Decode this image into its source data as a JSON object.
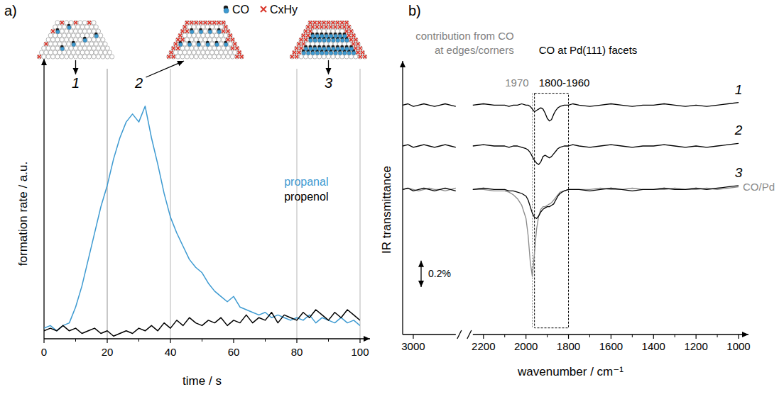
{
  "chart_data": [
    {
      "type": "line",
      "panel": "a)",
      "xlabel": "time / s",
      "ylabel": "formation rate / a.u.",
      "x": [
        0,
        2,
        4,
        6,
        8,
        10,
        12,
        14,
        16,
        18,
        20,
        22,
        24,
        26,
        28,
        30,
        32,
        34,
        36,
        38,
        40,
        42,
        44,
        46,
        48,
        50,
        52,
        54,
        56,
        58,
        60,
        62,
        64,
        66,
        68,
        70,
        72,
        74,
        76,
        78,
        80,
        82,
        84,
        86,
        88,
        90,
        92,
        94,
        96,
        98,
        100
      ],
      "xlim": [
        0,
        100
      ],
      "xticks": [
        0,
        20,
        40,
        60,
        80,
        100
      ],
      "ylim": [
        0,
        1
      ],
      "tick_labels": "x",
      "legend": "right",
      "series": [
        {
          "name": "propanal",
          "color": "#3d9ad1",
          "values": [
            0.04,
            0.05,
            0.03,
            0.05,
            0.06,
            0.12,
            0.2,
            0.3,
            0.4,
            0.5,
            0.58,
            0.68,
            0.76,
            0.82,
            0.85,
            0.82,
            0.88,
            0.76,
            0.66,
            0.55,
            0.46,
            0.4,
            0.35,
            0.3,
            0.27,
            0.25,
            0.21,
            0.18,
            0.16,
            0.14,
            0.16,
            0.12,
            0.11,
            0.1,
            0.09,
            0.1,
            0.08,
            0.09,
            0.08,
            0.07,
            0.08,
            0.07,
            0.09,
            0.06,
            0.08,
            0.07,
            0.06,
            0.08,
            0.06,
            0.07,
            0.05
          ]
        },
        {
          "name": "propenol",
          "color": "#000000",
          "values": [
            0.03,
            0.04,
            0.03,
            0.05,
            0.03,
            0.04,
            0.02,
            0.03,
            0.04,
            0.02,
            0.03,
            0.01,
            0.02,
            0.03,
            0.02,
            0.04,
            0.03,
            0.05,
            0.03,
            0.06,
            0.04,
            0.07,
            0.05,
            0.08,
            0.06,
            0.05,
            0.07,
            0.06,
            0.08,
            0.05,
            0.07,
            0.06,
            0.09,
            0.06,
            0.08,
            0.07,
            0.1,
            0.06,
            0.09,
            0.08,
            0.07,
            0.1,
            0.08,
            0.11,
            0.09,
            0.07,
            0.1,
            0.08,
            0.11,
            0.09,
            0.07
          ]
        }
      ],
      "regions": [
        {
          "label": "1",
          "xlim": [
            0,
            20
          ]
        },
        {
          "label": "2",
          "xlim": [
            20,
            40
          ]
        },
        {
          "label": "3",
          "xlim": [
            80,
            100
          ]
        }
      ],
      "annotations": [
        {
          "text": "CO"
        },
        {
          "text": "CxHy"
        }
      ]
    },
    {
      "type": "line",
      "panel": "b)",
      "xlabel": "wavenumber / cm⁻¹",
      "ylabel": "IR transmittance",
      "x": [
        3050,
        3025,
        3000,
        2975,
        2950,
        2925,
        2900,
        2875,
        2850,
        2825,
        2800,
        2500,
        2250,
        2200,
        2150,
        2100,
        2080,
        2060,
        2040,
        2020,
        2000,
        1990,
        1980,
        1970,
        1960,
        1950,
        1940,
        1930,
        1920,
        1910,
        1900,
        1890,
        1880,
        1870,
        1860,
        1850,
        1840,
        1820,
        1800,
        1780,
        1750,
        1700,
        1650,
        1600,
        1550,
        1500,
        1450,
        1400,
        1350,
        1300,
        1250,
        1200,
        1150,
        1100,
        1050,
        1000
      ],
      "xlim": [
        3050,
        1000
      ],
      "x_break": [
        2800,
        2250
      ],
      "xticks": [
        3000,
        2200,
        2000,
        1800,
        1600,
        1400,
        1200,
        1000
      ],
      "ylim": [
        0,
        2
      ],
      "tick_labels": "x",
      "series": [
        {
          "name": "1",
          "color": "#000000",
          "values": [
            1.74,
            1.75,
            1.73,
            1.74,
            1.75,
            1.74,
            1.73,
            1.74,
            1.75,
            1.74,
            1.73,
            null,
            1.74,
            1.75,
            1.74,
            1.74,
            1.73,
            1.74,
            1.74,
            1.75,
            1.74,
            1.74,
            1.73,
            1.71,
            1.69,
            1.7,
            1.71,
            1.72,
            1.71,
            1.68,
            1.64,
            1.62,
            1.63,
            1.67,
            1.7,
            1.72,
            1.73,
            1.74,
            1.74,
            1.75,
            1.74,
            1.73,
            1.74,
            1.75,
            1.74,
            1.73,
            1.74,
            1.74,
            1.75,
            1.74,
            1.73,
            1.74,
            1.73,
            1.74,
            1.75,
            1.76
          ]
        },
        {
          "name": "2",
          "color": "#000000",
          "values": [
            1.43,
            1.44,
            1.42,
            1.43,
            1.44,
            1.43,
            1.42,
            1.43,
            1.44,
            1.43,
            1.42,
            null,
            1.43,
            1.44,
            1.43,
            1.43,
            1.42,
            1.43,
            1.43,
            1.42,
            1.41,
            1.4,
            1.38,
            1.35,
            1.32,
            1.3,
            1.29,
            1.31,
            1.35,
            1.36,
            1.35,
            1.34,
            1.35,
            1.37,
            1.39,
            1.41,
            1.42,
            1.43,
            1.43,
            1.44,
            1.43,
            1.42,
            1.43,
            1.44,
            1.43,
            1.42,
            1.43,
            1.43,
            1.44,
            1.43,
            1.42,
            1.43,
            1.42,
            1.43,
            1.44,
            1.45
          ]
        },
        {
          "name": "3",
          "color": "#000000",
          "values": [
            1.1,
            1.11,
            1.09,
            1.1,
            1.11,
            1.1,
            1.09,
            1.1,
            1.11,
            1.1,
            1.09,
            null,
            1.1,
            1.11,
            1.1,
            1.1,
            1.09,
            1.09,
            1.08,
            1.07,
            1.05,
            1.02,
            0.97,
            0.92,
            0.89,
            0.88,
            0.9,
            0.93,
            0.95,
            0.96,
            0.97,
            0.97,
            0.98,
            0.99,
            1.02,
            1.05,
            1.07,
            1.09,
            1.1,
            1.1,
            1.1,
            1.09,
            1.1,
            1.11,
            1.1,
            1.09,
            1.1,
            1.1,
            1.11,
            1.1,
            1.1,
            1.11,
            1.1,
            1.11,
            1.12,
            1.13
          ]
        },
        {
          "name": "CO/Pd",
          "color": "#8a8a8a",
          "values": [
            1.1,
            1.11,
            1.1,
            1.09,
            1.1,
            1.11,
            1.1,
            1.1,
            1.09,
            1.1,
            1.11,
            null,
            1.1,
            1.1,
            1.09,
            1.09,
            1.08,
            1.06,
            1.03,
            0.98,
            0.88,
            0.75,
            0.55,
            0.44,
            0.62,
            0.8,
            0.9,
            0.95,
            0.97,
            0.97,
            0.98,
            0.99,
            1.0,
            1.02,
            1.04,
            1.06,
            1.08,
            1.09,
            1.1,
            1.1,
            1.1,
            1.1,
            1.11,
            1.1,
            1.1,
            1.11,
            1.1,
            1.1,
            1.1,
            1.11,
            1.1,
            1.1,
            1.11,
            1.1,
            1.11,
            1.12
          ]
        }
      ],
      "annotations": [
        {
          "text": "contribution from CO at edges/corners",
          "color": "#7f7f7f"
        },
        {
          "text": "1970",
          "x": 1970,
          "yrange": [
            0.05,
            1.83
          ],
          "color": "#7f7f7f"
        },
        {
          "text": "CO at Pd(111) facets",
          "color": "#000000"
        },
        {
          "text": "1800-1960",
          "xrange": [
            1800,
            1960
          ],
          "yrange": [
            0.05,
            1.83
          ],
          "color": "#000000"
        }
      ],
      "scale_bar": {
        "value": 0.2,
        "label": "0.2%"
      }
    }
  ]
}
